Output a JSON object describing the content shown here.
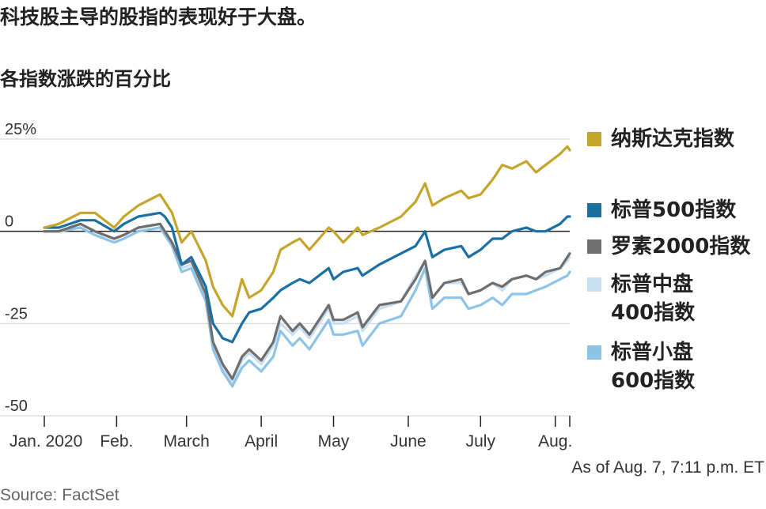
{
  "header": {
    "title": "科技股主导的股指的表现好于大盘。",
    "subtitle": "各指数涨跌的百分比"
  },
  "footer": {
    "note": "As of Aug. 7, 7:11 p.m. ET",
    "source": "Source: FactSet"
  },
  "chart_data": {
    "type": "line",
    "ylim": [
      -50,
      25
    ],
    "yticks": [
      {
        "value": 25,
        "label": "25%"
      },
      {
        "value": 0,
        "label": "0"
      },
      {
        "value": -25,
        "label": "-25"
      },
      {
        "value": -50,
        "label": "-50"
      }
    ],
    "xlim": [
      "2020-01-02",
      "2020-08-07"
    ],
    "xticks": [
      {
        "date": "2020-01-02",
        "label": "Jan. 2020"
      },
      {
        "date": "2020-02-01",
        "label": "Feb."
      },
      {
        "date": "2020-03-01",
        "label": "March"
      },
      {
        "date": "2020-04-01",
        "label": "April"
      },
      {
        "date": "2020-05-01",
        "label": "May"
      },
      {
        "date": "2020-06-01",
        "label": "June"
      },
      {
        "date": "2020-07-01",
        "label": "July"
      },
      {
        "date": "2020-08-01",
        "label": "Aug."
      }
    ],
    "grid": true,
    "legend_position": "right",
    "series": [
      {
        "name": "纳斯达克指数",
        "label_lines": [
          "纳斯达克指数"
        ],
        "color": "#c4a52a",
        "points": [
          [
            "2020-01-02",
            1
          ],
          [
            "2020-01-08",
            2
          ],
          [
            "2020-01-17",
            5
          ],
          [
            "2020-01-23",
            5
          ],
          [
            "2020-01-31",
            1
          ],
          [
            "2020-02-04",
            4
          ],
          [
            "2020-02-10",
            7
          ],
          [
            "2020-02-19",
            10
          ],
          [
            "2020-02-21",
            8
          ],
          [
            "2020-02-24",
            5
          ],
          [
            "2020-02-28",
            -3
          ],
          [
            "2020-03-03",
            0
          ],
          [
            "2020-03-09",
            -8
          ],
          [
            "2020-03-12",
            -15
          ],
          [
            "2020-03-16",
            -20
          ],
          [
            "2020-03-20",
            -23
          ],
          [
            "2020-03-24",
            -13
          ],
          [
            "2020-03-27",
            -18
          ],
          [
            "2020-04-01",
            -16
          ],
          [
            "2020-04-06",
            -11
          ],
          [
            "2020-04-09",
            -5
          ],
          [
            "2020-04-14",
            -3
          ],
          [
            "2020-04-17",
            -2
          ],
          [
            "2020-04-21",
            -5
          ],
          [
            "2020-04-29",
            1
          ],
          [
            "2020-05-01",
            0
          ],
          [
            "2020-05-05",
            -3
          ],
          [
            "2020-05-11",
            1
          ],
          [
            "2020-05-13",
            -1
          ],
          [
            "2020-05-20",
            1
          ],
          [
            "2020-05-29",
            4
          ],
          [
            "2020-06-04",
            8
          ],
          [
            "2020-06-08",
            13
          ],
          [
            "2020-06-11",
            7
          ],
          [
            "2020-06-16",
            9
          ],
          [
            "2020-06-23",
            11
          ],
          [
            "2020-06-26",
            9
          ],
          [
            "2020-07-01",
            10
          ],
          [
            "2020-07-06",
            14
          ],
          [
            "2020-07-10",
            18
          ],
          [
            "2020-07-14",
            17
          ],
          [
            "2020-07-20",
            19
          ],
          [
            "2020-07-24",
            16
          ],
          [
            "2020-07-28",
            18
          ],
          [
            "2020-08-03",
            21
          ],
          [
            "2020-08-06",
            23
          ],
          [
            "2020-08-07",
            22
          ]
        ]
      },
      {
        "name": "标普500指数",
        "label_lines": [
          "标普500指数"
        ],
        "color": "#1a6fa3",
        "points": [
          [
            "2020-01-02",
            1
          ],
          [
            "2020-01-08",
            1
          ],
          [
            "2020-01-17",
            3
          ],
          [
            "2020-01-23",
            3
          ],
          [
            "2020-01-31",
            0
          ],
          [
            "2020-02-04",
            2
          ],
          [
            "2020-02-10",
            4
          ],
          [
            "2020-02-19",
            5
          ],
          [
            "2020-02-21",
            4
          ],
          [
            "2020-02-24",
            1
          ],
          [
            "2020-02-28",
            -9
          ],
          [
            "2020-03-03",
            -7
          ],
          [
            "2020-03-09",
            -15
          ],
          [
            "2020-03-12",
            -25
          ],
          [
            "2020-03-16",
            -29
          ],
          [
            "2020-03-20",
            -30
          ],
          [
            "2020-03-24",
            -25
          ],
          [
            "2020-03-27",
            -22
          ],
          [
            "2020-04-01",
            -21
          ],
          [
            "2020-04-06",
            -18
          ],
          [
            "2020-04-09",
            -16
          ],
          [
            "2020-04-14",
            -14
          ],
          [
            "2020-04-17",
            -13
          ],
          [
            "2020-04-21",
            -14
          ],
          [
            "2020-04-29",
            -10
          ],
          [
            "2020-05-01",
            -13
          ],
          [
            "2020-05-05",
            -11
          ],
          [
            "2020-05-11",
            -10
          ],
          [
            "2020-05-13",
            -12
          ],
          [
            "2020-05-20",
            -9
          ],
          [
            "2020-05-29",
            -6
          ],
          [
            "2020-06-04",
            -4
          ],
          [
            "2020-06-08",
            0
          ],
          [
            "2020-06-11",
            -7
          ],
          [
            "2020-06-16",
            -5
          ],
          [
            "2020-06-23",
            -4
          ],
          [
            "2020-06-26",
            -7
          ],
          [
            "2020-07-01",
            -5
          ],
          [
            "2020-07-06",
            -2
          ],
          [
            "2020-07-10",
            -2
          ],
          [
            "2020-07-14",
            0
          ],
          [
            "2020-07-20",
            1
          ],
          [
            "2020-07-24",
            0
          ],
          [
            "2020-07-28",
            0
          ],
          [
            "2020-08-03",
            2
          ],
          [
            "2020-08-06",
            4
          ],
          [
            "2020-08-07",
            4
          ]
        ]
      },
      {
        "name": "罗素2000指数",
        "label_lines": [
          "罗素2000指数"
        ],
        "color": "#6e6e6e",
        "points": [
          [
            "2020-01-02",
            0
          ],
          [
            "2020-01-08",
            0
          ],
          [
            "2020-01-17",
            2
          ],
          [
            "2020-01-23",
            0
          ],
          [
            "2020-01-31",
            -2
          ],
          [
            "2020-02-04",
            -1
          ],
          [
            "2020-02-10",
            1
          ],
          [
            "2020-02-19",
            2
          ],
          [
            "2020-02-21",
            0
          ],
          [
            "2020-02-24",
            -3
          ],
          [
            "2020-02-28",
            -9
          ],
          [
            "2020-03-03",
            -8
          ],
          [
            "2020-03-09",
            -17
          ],
          [
            "2020-03-12",
            -30
          ],
          [
            "2020-03-16",
            -36
          ],
          [
            "2020-03-20",
            -40
          ],
          [
            "2020-03-24",
            -34
          ],
          [
            "2020-03-27",
            -32
          ],
          [
            "2020-04-01",
            -35
          ],
          [
            "2020-04-06",
            -30
          ],
          [
            "2020-04-09",
            -23
          ],
          [
            "2020-04-14",
            -27
          ],
          [
            "2020-04-17",
            -25
          ],
          [
            "2020-04-21",
            -28
          ],
          [
            "2020-04-29",
            -20
          ],
          [
            "2020-05-01",
            -24
          ],
          [
            "2020-05-05",
            -24
          ],
          [
            "2020-05-11",
            -22
          ],
          [
            "2020-05-13",
            -26
          ],
          [
            "2020-05-20",
            -20
          ],
          [
            "2020-05-29",
            -19
          ],
          [
            "2020-06-04",
            -13
          ],
          [
            "2020-06-08",
            -8
          ],
          [
            "2020-06-11",
            -18
          ],
          [
            "2020-06-16",
            -14
          ],
          [
            "2020-06-23",
            -13
          ],
          [
            "2020-06-26",
            -17
          ],
          [
            "2020-07-01",
            -16
          ],
          [
            "2020-07-06",
            -14
          ],
          [
            "2020-07-10",
            -15
          ],
          [
            "2020-07-14",
            -13
          ],
          [
            "2020-07-20",
            -12
          ],
          [
            "2020-07-24",
            -13
          ],
          [
            "2020-07-28",
            -11
          ],
          [
            "2020-08-03",
            -10
          ],
          [
            "2020-08-06",
            -7
          ],
          [
            "2020-08-07",
            -6
          ]
        ]
      },
      {
        "name": "标普中盘400指数",
        "label_lines": [
          "标普中盘",
          "400指数"
        ],
        "color": "#c6dff2",
        "points": [
          [
            "2020-01-02",
            0
          ],
          [
            "2020-01-08",
            0
          ],
          [
            "2020-01-17",
            2
          ],
          [
            "2020-01-23",
            0
          ],
          [
            "2020-01-31",
            -2
          ],
          [
            "2020-02-04",
            -1
          ],
          [
            "2020-02-10",
            1
          ],
          [
            "2020-02-19",
            2
          ],
          [
            "2020-02-21",
            0
          ],
          [
            "2020-02-24",
            -3
          ],
          [
            "2020-02-28",
            -10
          ],
          [
            "2020-03-03",
            -9
          ],
          [
            "2020-03-09",
            -18
          ],
          [
            "2020-03-12",
            -31
          ],
          [
            "2020-03-16",
            -37
          ],
          [
            "2020-03-20",
            -41
          ],
          [
            "2020-03-24",
            -35
          ],
          [
            "2020-03-27",
            -33
          ],
          [
            "2020-04-01",
            -36
          ],
          [
            "2020-04-06",
            -31
          ],
          [
            "2020-04-09",
            -25
          ],
          [
            "2020-04-14",
            -28
          ],
          [
            "2020-04-17",
            -26
          ],
          [
            "2020-04-21",
            -29
          ],
          [
            "2020-04-29",
            -21
          ],
          [
            "2020-05-01",
            -25
          ],
          [
            "2020-05-05",
            -25
          ],
          [
            "2020-05-11",
            -23
          ],
          [
            "2020-05-13",
            -27
          ],
          [
            "2020-05-20",
            -21
          ],
          [
            "2020-05-29",
            -19
          ],
          [
            "2020-06-04",
            -12
          ],
          [
            "2020-06-08",
            -8
          ],
          [
            "2020-06-11",
            -18
          ],
          [
            "2020-06-16",
            -14
          ],
          [
            "2020-06-23",
            -14
          ],
          [
            "2020-06-26",
            -17
          ],
          [
            "2020-07-01",
            -16
          ],
          [
            "2020-07-06",
            -14
          ],
          [
            "2020-07-10",
            -16
          ],
          [
            "2020-07-14",
            -13
          ],
          [
            "2020-07-20",
            -12
          ],
          [
            "2020-07-24",
            -13
          ],
          [
            "2020-07-28",
            -12
          ],
          [
            "2020-08-03",
            -10
          ],
          [
            "2020-08-06",
            -8
          ],
          [
            "2020-08-07",
            -7
          ]
        ]
      },
      {
        "name": "标普小盘600指数",
        "label_lines": [
          "标普小盘",
          "600指数"
        ],
        "color": "#8ec3e8",
        "points": [
          [
            "2020-01-02",
            0
          ],
          [
            "2020-01-08",
            0
          ],
          [
            "2020-01-17",
            1
          ],
          [
            "2020-01-23",
            -1
          ],
          [
            "2020-01-31",
            -3
          ],
          [
            "2020-02-04",
            -2
          ],
          [
            "2020-02-10",
            0
          ],
          [
            "2020-02-19",
            1
          ],
          [
            "2020-02-21",
            -1
          ],
          [
            "2020-02-24",
            -4
          ],
          [
            "2020-02-28",
            -11
          ],
          [
            "2020-03-03",
            -10
          ],
          [
            "2020-03-09",
            -19
          ],
          [
            "2020-03-12",
            -32
          ],
          [
            "2020-03-16",
            -38
          ],
          [
            "2020-03-20",
            -42
          ],
          [
            "2020-03-24",
            -37
          ],
          [
            "2020-03-27",
            -35
          ],
          [
            "2020-04-01",
            -38
          ],
          [
            "2020-04-06",
            -34
          ],
          [
            "2020-04-09",
            -27
          ],
          [
            "2020-04-14",
            -31
          ],
          [
            "2020-04-17",
            -29
          ],
          [
            "2020-04-21",
            -32
          ],
          [
            "2020-04-29",
            -24
          ],
          [
            "2020-05-01",
            -28
          ],
          [
            "2020-05-05",
            -28
          ],
          [
            "2020-05-11",
            -27
          ],
          [
            "2020-05-13",
            -31
          ],
          [
            "2020-05-20",
            -25
          ],
          [
            "2020-05-29",
            -23
          ],
          [
            "2020-06-04",
            -16
          ],
          [
            "2020-06-08",
            -10
          ],
          [
            "2020-06-11",
            -21
          ],
          [
            "2020-06-16",
            -18
          ],
          [
            "2020-06-23",
            -18
          ],
          [
            "2020-06-26",
            -21
          ],
          [
            "2020-07-01",
            -20
          ],
          [
            "2020-07-06",
            -18
          ],
          [
            "2020-07-10",
            -20
          ],
          [
            "2020-07-14",
            -17
          ],
          [
            "2020-07-20",
            -17
          ],
          [
            "2020-07-24",
            -16
          ],
          [
            "2020-07-28",
            -15
          ],
          [
            "2020-08-03",
            -13
          ],
          [
            "2020-08-06",
            -12
          ],
          [
            "2020-08-07",
            -11
          ]
        ]
      }
    ]
  }
}
